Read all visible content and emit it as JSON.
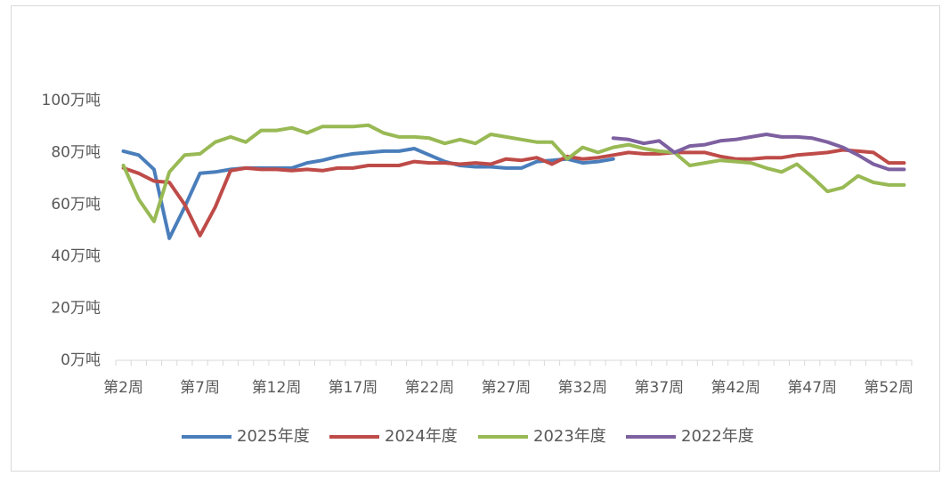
{
  "chart_data": {
    "type": "line",
    "categories": [
      "第2周",
      null,
      null,
      null,
      null,
      "第7周",
      null,
      null,
      null,
      null,
      "第12周",
      null,
      null,
      null,
      null,
      "第17周",
      null,
      null,
      null,
      null,
      "第22周",
      null,
      null,
      null,
      null,
      "第27周",
      null,
      null,
      null,
      null,
      "第32周",
      null,
      null,
      null,
      null,
      "第37周",
      null,
      null,
      null,
      null,
      "第42周",
      null,
      null,
      null,
      null,
      "第47周",
      null,
      null,
      null,
      null,
      "第52周",
      null
    ],
    "series": [
      {
        "name": "2025年度",
        "color": "#4a7ebb",
        "values": [
          80.5,
          79,
          73.5,
          47,
          59,
          72,
          72.5,
          73.5,
          74,
          74,
          74,
          74,
          76,
          77,
          78.5,
          79.5,
          80,
          80.5,
          80.5,
          81.5,
          79,
          76.5,
          75,
          74.5,
          74.5,
          74,
          74,
          76.5,
          77,
          77.5,
          76,
          76.5,
          77.5,
          null,
          null,
          null,
          null,
          null,
          null,
          null,
          null,
          null,
          null,
          null,
          null,
          null,
          null,
          null,
          null,
          null,
          null,
          null
        ]
      },
      {
        "name": "2024年度",
        "color": "#be4b48",
        "values": [
          74,
          72,
          69,
          68.5,
          60,
          48,
          59,
          73,
          74,
          73.5,
          73.5,
          73,
          73.5,
          73,
          74,
          74,
          75,
          75,
          75,
          76.5,
          76,
          76,
          75.5,
          76,
          75.5,
          77.5,
          77,
          78,
          75.5,
          78.5,
          77.5,
          78,
          79,
          80,
          79.5,
          79.5,
          80,
          80,
          80,
          78.5,
          77.5,
          77.5,
          78,
          78,
          79,
          79.5,
          80,
          81,
          80.5,
          80,
          76,
          76
        ]
      },
      {
        "name": "2023年度",
        "color": "#98b954",
        "values": [
          75,
          62,
          53.5,
          72.5,
          79,
          79.5,
          84,
          86,
          84,
          88.5,
          88.5,
          89.5,
          87.5,
          90,
          90,
          90,
          90.5,
          87.5,
          86,
          86,
          85.5,
          83.5,
          85,
          83.5,
          87,
          86,
          85,
          84,
          84,
          77.5,
          82,
          80,
          82,
          83,
          81.5,
          80.5,
          80,
          75,
          76,
          77,
          76.5,
          76,
          74,
          72.5,
          75.5,
          70.5,
          65,
          66.5,
          71,
          68.5,
          67.5,
          67.5
        ]
      },
      {
        "name": "2022年度",
        "color": "#7d60a0",
        "values": [
          null,
          null,
          null,
          null,
          null,
          null,
          null,
          null,
          null,
          null,
          null,
          null,
          null,
          null,
          null,
          null,
          null,
          null,
          null,
          null,
          null,
          null,
          null,
          null,
          null,
          null,
          null,
          null,
          null,
          null,
          null,
          null,
          85.5,
          85,
          83.5,
          84.5,
          80,
          82.5,
          83,
          84.5,
          85,
          86,
          87,
          86,
          86,
          85.5,
          84,
          82,
          79,
          75.5,
          73.5,
          73.5
        ]
      }
    ],
    "ylim": [
      0,
      100
    ],
    "yticks": [
      {
        "value": 0,
        "label": "0万吨"
      },
      {
        "value": 20,
        "label": "20万吨"
      },
      {
        "value": 40,
        "label": "40万吨"
      },
      {
        "value": 60,
        "label": "60万吨"
      },
      {
        "value": 80,
        "label": "80万吨"
      },
      {
        "value": 100,
        "label": "100万吨"
      }
    ],
    "legend": "bottom"
  }
}
